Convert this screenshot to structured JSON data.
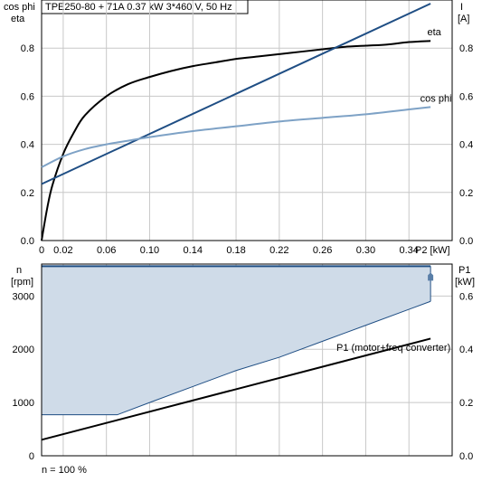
{
  "header": {
    "title": "TPE250-80 + 71A   0.37 kW   3*460 V, 50 Hz"
  },
  "footer": {
    "note": "n = 100 %"
  },
  "colors": {
    "dark_blue": "#1f4e84",
    "light_blue": "#7ea2c6",
    "black": "#000000",
    "fill_blue": "#cfdbe8",
    "grid": "#c8c8c8"
  },
  "chart_data": [
    {
      "type": "line",
      "x_tick_labels": [
        "0",
        "0.02",
        "0.06",
        "0.10",
        "0.14",
        "0.18",
        "0.22",
        "0.26",
        "0.30",
        "0.34"
      ],
      "x_tick_values": [
        0,
        0.02,
        0.06,
        0.1,
        0.14,
        0.18,
        0.22,
        0.26,
        0.3,
        0.34
      ],
      "xlabel": "P2 [kW]",
      "xlim": [
        0,
        0.38
      ],
      "left_axis": {
        "label": "cos phi\neta",
        "label_line1": "cos phi",
        "label_line2": "eta",
        "ylim": [
          0,
          1.0
        ],
        "ticks": [
          0,
          0.2,
          0.4,
          0.6,
          0.8
        ],
        "tick_labels": [
          "0.0",
          "0.2",
          "0.4",
          "0.6",
          "0.8"
        ]
      },
      "right_axis": {
        "label_line1": "I",
        "label_line2": "[A]",
        "ylim": [
          0,
          1.0
        ],
        "ticks": [
          0,
          0.2,
          0.4,
          0.6,
          0.8
        ],
        "tick_labels": [
          "0.0",
          "0.2",
          "0.4",
          "0.6",
          "0.8"
        ]
      },
      "grid": true,
      "series": [
        {
          "name": "eta",
          "axis": "left",
          "color": "#000000",
          "x": [
            0,
            0.005,
            0.01,
            0.02,
            0.03,
            0.04,
            0.06,
            0.08,
            0.1,
            0.12,
            0.14,
            0.16,
            0.18,
            0.2,
            0.22,
            0.24,
            0.26,
            0.28,
            0.3,
            0.32,
            0.34,
            0.36
          ],
          "y": [
            0.0,
            0.13,
            0.23,
            0.36,
            0.45,
            0.52,
            0.6,
            0.65,
            0.68,
            0.705,
            0.725,
            0.74,
            0.755,
            0.765,
            0.775,
            0.785,
            0.795,
            0.805,
            0.81,
            0.815,
            0.825,
            0.83
          ]
        },
        {
          "name": "I",
          "axis": "right",
          "color": "#1f4e84",
          "x": [
            0,
            0.36
          ],
          "y": [
            0.235,
            0.985
          ]
        },
        {
          "name": "cos phi",
          "axis": "left",
          "color": "#7ea2c6",
          "x": [
            0,
            0.02,
            0.04,
            0.06,
            0.08,
            0.1,
            0.14,
            0.18,
            0.22,
            0.26,
            0.3,
            0.34,
            0.36
          ],
          "y": [
            0.305,
            0.35,
            0.38,
            0.4,
            0.415,
            0.43,
            0.455,
            0.475,
            0.495,
            0.51,
            0.525,
            0.545,
            0.555
          ]
        }
      ]
    },
    {
      "type": "area",
      "footer": "n = 100 %",
      "xlim": [
        0,
        0.38
      ],
      "left_axis": {
        "label_line1": "n",
        "label_line2": "[rpm]",
        "ylim": [
          0,
          3600
        ],
        "ticks": [
          0,
          1000,
          2000,
          3000
        ],
        "tick_labels": [
          "0",
          "1000",
          "2000",
          "3000"
        ]
      },
      "right_axis": {
        "label_line1": "P1",
        "label_line2": "[kW]",
        "ylim": [
          0,
          0.72
        ],
        "ticks": [
          0,
          0.2,
          0.4,
          0.6
        ],
        "tick_labels": [
          "0.0",
          "0.2",
          "0.4",
          "0.6"
        ]
      },
      "grid": true,
      "series": [
        {
          "name": "speed range upper",
          "axis": "left",
          "color": "#1f4e84",
          "x": [
            0,
            0.36
          ],
          "y": [
            3560,
            3560
          ]
        },
        {
          "name": "speed range lower",
          "axis": "left",
          "color": "#1f4e84",
          "x": [
            0,
            0.07,
            0.1,
            0.14,
            0.18,
            0.22,
            0.26,
            0.3,
            0.34,
            0.36
          ],
          "y": [
            770,
            770,
            1000,
            1300,
            1600,
            1850,
            2150,
            2450,
            2750,
            2900
          ]
        },
        {
          "name": "P1 (motor+freq converter)",
          "axis": "right",
          "color": "#000000",
          "x": [
            0,
            0.36
          ],
          "y": [
            0.06,
            0.44
          ]
        }
      ]
    }
  ]
}
